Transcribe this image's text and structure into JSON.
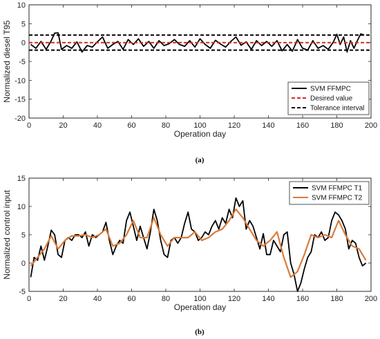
{
  "chart_data": [
    {
      "type": "line",
      "caption": "(a)",
      "xlabel": "Operation day",
      "ylabel": "Normalized diesel T95",
      "xlim": [
        0,
        200
      ],
      "ylim": [
        -20,
        10
      ],
      "xticks": [
        0,
        20,
        40,
        60,
        80,
        100,
        120,
        140,
        160,
        180,
        200
      ],
      "yticks": [
        -20,
        -15,
        -10,
        -5,
        0,
        5,
        10
      ],
      "grid": false,
      "legend_position": "bottom-right",
      "colors": {
        "svm": "#000000",
        "desired": "#d62728",
        "tolerance": "#000000"
      },
      "series": [
        {
          "name": "SVM FFMPC",
          "x": [
            1,
            4,
            7,
            10,
            13,
            15,
            17,
            19,
            22,
            25,
            28,
            31,
            34,
            37,
            40,
            43,
            46,
            49,
            52,
            55,
            58,
            61,
            64,
            67,
            70,
            73,
            76,
            79,
            82,
            85,
            88,
            91,
            94,
            97,
            100,
            103,
            106,
            109,
            112,
            115,
            118,
            121,
            124,
            127,
            130,
            133,
            136,
            139,
            142,
            145,
            148,
            151,
            154,
            157,
            160,
            163,
            166,
            169,
            172,
            175,
            178,
            180,
            182,
            184,
            186,
            188,
            190,
            192,
            194,
            196
          ],
          "y": [
            -0.5,
            -1.5,
            0.3,
            -1.8,
            0.5,
            2.5,
            2.6,
            -1.8,
            -0.8,
            -1.5,
            0.2,
            -2.5,
            -0.8,
            -1.2,
            0.2,
            1.5,
            -1.5,
            -0.5,
            0.3,
            -1.8,
            0.8,
            -0.5,
            1.0,
            -1.0,
            0.3,
            -1.5,
            0.5,
            -0.8,
            -0.3,
            0.8,
            -0.5,
            -1.0,
            0.5,
            -1.2,
            1.0,
            -0.5,
            -1.5,
            0.6,
            -0.4,
            -1.2,
            0.3,
            1.5,
            -0.7,
            0.2,
            -1.8,
            0.5,
            -0.8,
            0.3,
            -1.0,
            0.5,
            -2.2,
            -0.5,
            -2.3,
            0.8,
            -1.5,
            -2.0,
            0.5,
            -1.5,
            -0.8,
            -1.8,
            0.2,
            2.2,
            -0.5,
            1.5,
            -2.5,
            0.5,
            -1.5,
            0.5,
            2.3,
            2.0
          ]
        },
        {
          "name": "Desired value",
          "x": [
            0,
            200
          ],
          "y": [
            0,
            0
          ]
        },
        {
          "name": "Tolerance interval",
          "x": [
            0,
            200
          ],
          "y_upper": 2,
          "y_lower": -2
        }
      ]
    },
    {
      "type": "line",
      "caption": "(b)",
      "xlabel": "Operation day",
      "ylabel": "Normalized control input",
      "xlim": [
        0,
        200
      ],
      "ylim": [
        -5,
        15
      ],
      "xticks": [
        0,
        20,
        40,
        60,
        80,
        100,
        120,
        140,
        160,
        180,
        200
      ],
      "yticks": [
        -5,
        0,
        5,
        10,
        15
      ],
      "grid": false,
      "legend_position": "top-right",
      "colors": {
        "t1": "#000000",
        "t2": "#d97b3a"
      },
      "series": [
        {
          "name": "SVM FFMPC T1",
          "x": [
            1,
            3,
            5,
            7,
            9,
            11,
            13,
            15,
            17,
            19,
            21,
            23,
            25,
            27,
            29,
            31,
            33,
            35,
            37,
            39,
            41,
            43,
            45,
            47,
            49,
            51,
            53,
            55,
            57,
            59,
            61,
            63,
            65,
            67,
            69,
            71,
            73,
            75,
            77,
            79,
            81,
            83,
            85,
            87,
            89,
            91,
            93,
            95,
            97,
            99,
            101,
            103,
            105,
            107,
            109,
            111,
            113,
            115,
            117,
            119,
            121,
            123,
            125,
            127,
            129,
            131,
            133,
            135,
            137,
            139,
            141,
            143,
            145,
            147,
            149,
            151,
            153,
            155,
            157,
            159,
            161,
            163,
            165,
            167,
            169,
            171,
            173,
            175,
            177,
            179,
            181,
            183,
            185,
            187,
            189,
            191,
            193,
            195,
            197
          ],
          "y": [
            -2.5,
            1,
            0.5,
            3,
            0.5,
            3,
            5.8,
            5,
            1.5,
            1,
            4,
            4.5,
            4,
            5,
            5,
            4.5,
            5.5,
            3,
            5,
            4.5,
            5,
            5.5,
            7.2,
            4,
            1.5,
            3,
            4,
            3.5,
            7.5,
            9.0,
            6.5,
            4,
            6.5,
            4.5,
            2.5,
            5.5,
            9.5,
            7.5,
            4,
            1.5,
            1,
            4,
            4.5,
            3.5,
            4.5,
            7,
            9,
            6,
            5.5,
            4,
            4.5,
            5.5,
            5,
            6.5,
            7.5,
            6,
            8,
            7,
            9.5,
            8,
            11.5,
            10,
            11,
            6,
            7.5,
            6.5,
            4.5,
            2.5,
            5.2,
            1.5,
            1.5,
            4,
            3,
            2,
            5,
            5.5,
            0,
            -2,
            -5,
            -3.5,
            -1,
            1,
            2,
            5,
            4.5,
            5.5,
            4,
            4.5,
            7.5,
            9,
            8.5,
            7.5,
            6,
            2.5,
            4,
            3.5,
            1,
            -0.5,
            0
          ]
        },
        {
          "name": "SVM FFMPC T2",
          "x": [
            1,
            5,
            9,
            13,
            17,
            21,
            25,
            29,
            33,
            37,
            41,
            45,
            49,
            53,
            57,
            61,
            65,
            69,
            73,
            77,
            81,
            85,
            89,
            93,
            97,
            101,
            105,
            109,
            113,
            117,
            121,
            125,
            129,
            133,
            137,
            141,
            145,
            149,
            153,
            157,
            161,
            165,
            169,
            173,
            177,
            181,
            185,
            189,
            193,
            197
          ],
          "y": [
            -0.5,
            1,
            2.5,
            4.8,
            2.5,
            4,
            4.8,
            4.8,
            5,
            4.5,
            5,
            6,
            3,
            3.5,
            5,
            7.5,
            4.5,
            4.5,
            8,
            5,
            3,
            4.5,
            4.5,
            4.5,
            5.5,
            4,
            4.5,
            5.5,
            6,
            7.5,
            9.5,
            8,
            6,
            4,
            3,
            4,
            5.5,
            1,
            -2.5,
            -1.5,
            1.5,
            5,
            4.5,
            5,
            4.5,
            7.5,
            5,
            3,
            2.5,
            0.5
          ]
        }
      ]
    }
  ]
}
